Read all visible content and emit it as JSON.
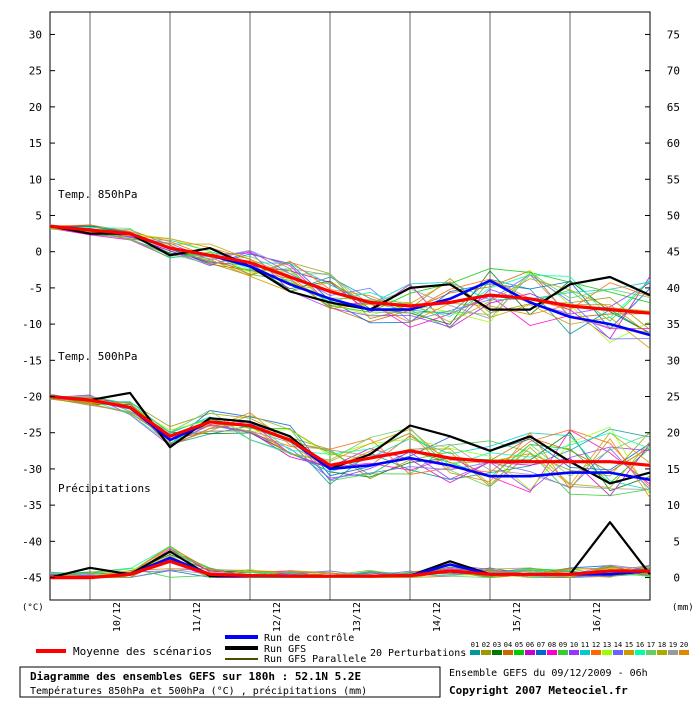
{
  "chart_data": {
    "type": "line",
    "title": "Diagramme des ensembles GEFS sur 180h : 52.1N 5.2E",
    "subtitle": "Températures 850hPa et 500hPa (°C) , précipitations (mm)",
    "ensemble_label": "Ensemble GEFS du 09/12/2009 - 06h",
    "copyright": "Copyright 2007 Meteociel.fr",
    "left_axis_unit": "(°C)",
    "right_axis_unit": "(mm)",
    "left_ticks": [
      30,
      25,
      20,
      15,
      10,
      5,
      0,
      -5,
      -10,
      -15,
      -20,
      -25,
      -30,
      -35,
      -40,
      -45
    ],
    "right_ticks": [
      75,
      70,
      65,
      60,
      55,
      50,
      45,
      40,
      35,
      30,
      25,
      20,
      15,
      10,
      5,
      0
    ],
    "left_ylim": [
      -50,
      32
    ],
    "date_labels": [
      "10/12",
      "11/12",
      "12/12",
      "13/12",
      "14/12",
      "15/12",
      "16/12"
    ],
    "panel_labels": {
      "t850": "Temp. 850hPa",
      "t500": "Temp. 500hPa",
      "precip": "Précipitations"
    },
    "x": [
      0,
      12,
      24,
      36,
      48,
      60,
      72,
      84,
      96,
      108,
      120,
      132,
      144,
      156,
      168,
      180
    ],
    "legend": {
      "mean": "Moyenne des scénarios",
      "control": "Run de contrôle",
      "gfs": "Run GFS",
      "gfs_parallel": "Run GFS Parallele",
      "perturbations": "20 Perturbations",
      "perturbation_numbers": [
        "01",
        "02",
        "03",
        "04",
        "05",
        "06",
        "07",
        "08",
        "09",
        "10",
        "11",
        "12",
        "13",
        "14",
        "15",
        "16",
        "17",
        "18",
        "19",
        "20"
      ]
    },
    "colors": {
      "mean": "#ff0000",
      "control": "#0000ff",
      "gfs": "#000000",
      "gfs_parallel": "#000000",
      "perturbations": [
        "#009999",
        "#999900",
        "#007700",
        "#cc6600",
        "#00cc00",
        "#cc00cc",
        "#0066cc",
        "#ff00cc",
        "#33cc33",
        "#9933ff",
        "#00cccc",
        "#ff6600",
        "#99ff00",
        "#6666ff",
        "#cc9900",
        "#00ffaa",
        "#66cc66",
        "#aaaa00",
        "#999999",
        "#dd8800"
      ]
    },
    "series": [
      {
        "group": "t850",
        "role": "mean",
        "values": [
          3.5,
          3,
          2.5,
          0.5,
          -0.5,
          -1.5,
          -3.5,
          -5.5,
          -7,
          -7.5,
          -7,
          -6,
          -6.5,
          -7.5,
          -8,
          -8.5
        ]
      },
      {
        "group": "t850",
        "role": "control",
        "values": [
          3.5,
          3,
          2.5,
          0.5,
          -0.5,
          -2,
          -4.5,
          -6.5,
          -8,
          -8,
          -6.5,
          -4,
          -7,
          -9,
          -10,
          -11.5
        ]
      },
      {
        "group": "t850",
        "role": "gfs",
        "values": [
          3.5,
          2.5,
          2.5,
          -0.5,
          0.5,
          -2,
          -5.5,
          -7,
          -8,
          -5,
          -4.5,
          -8,
          -8,
          -4.5,
          -3.5,
          -6
        ]
      },
      {
        "group": "t500",
        "role": "mean",
        "values": [
          -20,
          -20.5,
          -21.5,
          -25.5,
          -23.5,
          -24,
          -26,
          -29.5,
          -28.5,
          -27.5,
          -28.5,
          -29,
          -29,
          -29,
          -29,
          -29.5
        ]
      },
      {
        "group": "t500",
        "role": "control",
        "values": [
          -20,
          -20.5,
          -21.5,
          -26,
          -23.5,
          -24,
          -26,
          -30,
          -29.5,
          -28.5,
          -29.5,
          -31,
          -31,
          -30.5,
          -30.5,
          -31.5
        ]
      },
      {
        "group": "t500",
        "role": "gfs",
        "values": [
          -20,
          -20.5,
          -19.5,
          -27,
          -23,
          -23.5,
          -25.5,
          -30,
          -28,
          -24,
          -25.5,
          -27.5,
          -25.5,
          -29,
          -32,
          -30.5
        ]
      },
      {
        "group": "precip",
        "role": "mean",
        "values": [
          0,
          0,
          0.5,
          2.5,
          0.5,
          0.3,
          0.2,
          0.2,
          0.2,
          0.3,
          1,
          0.5,
          0.5,
          0.5,
          1,
          1
        ]
      },
      {
        "group": "precip",
        "role": "control",
        "values": [
          0,
          0,
          0.5,
          3,
          0.5,
          0.3,
          0.2,
          0.2,
          0.2,
          0.3,
          2,
          0.5,
          0.5,
          0.5,
          0.5,
          1
        ]
      },
      {
        "group": "precip",
        "role": "gfs",
        "values": [
          0,
          1.5,
          0.5,
          4,
          0.2,
          0.2,
          0.2,
          0.2,
          0.2,
          0.3,
          2.5,
          0.5,
          0.5,
          0.5,
          8.5,
          0.5
        ]
      }
    ]
  }
}
